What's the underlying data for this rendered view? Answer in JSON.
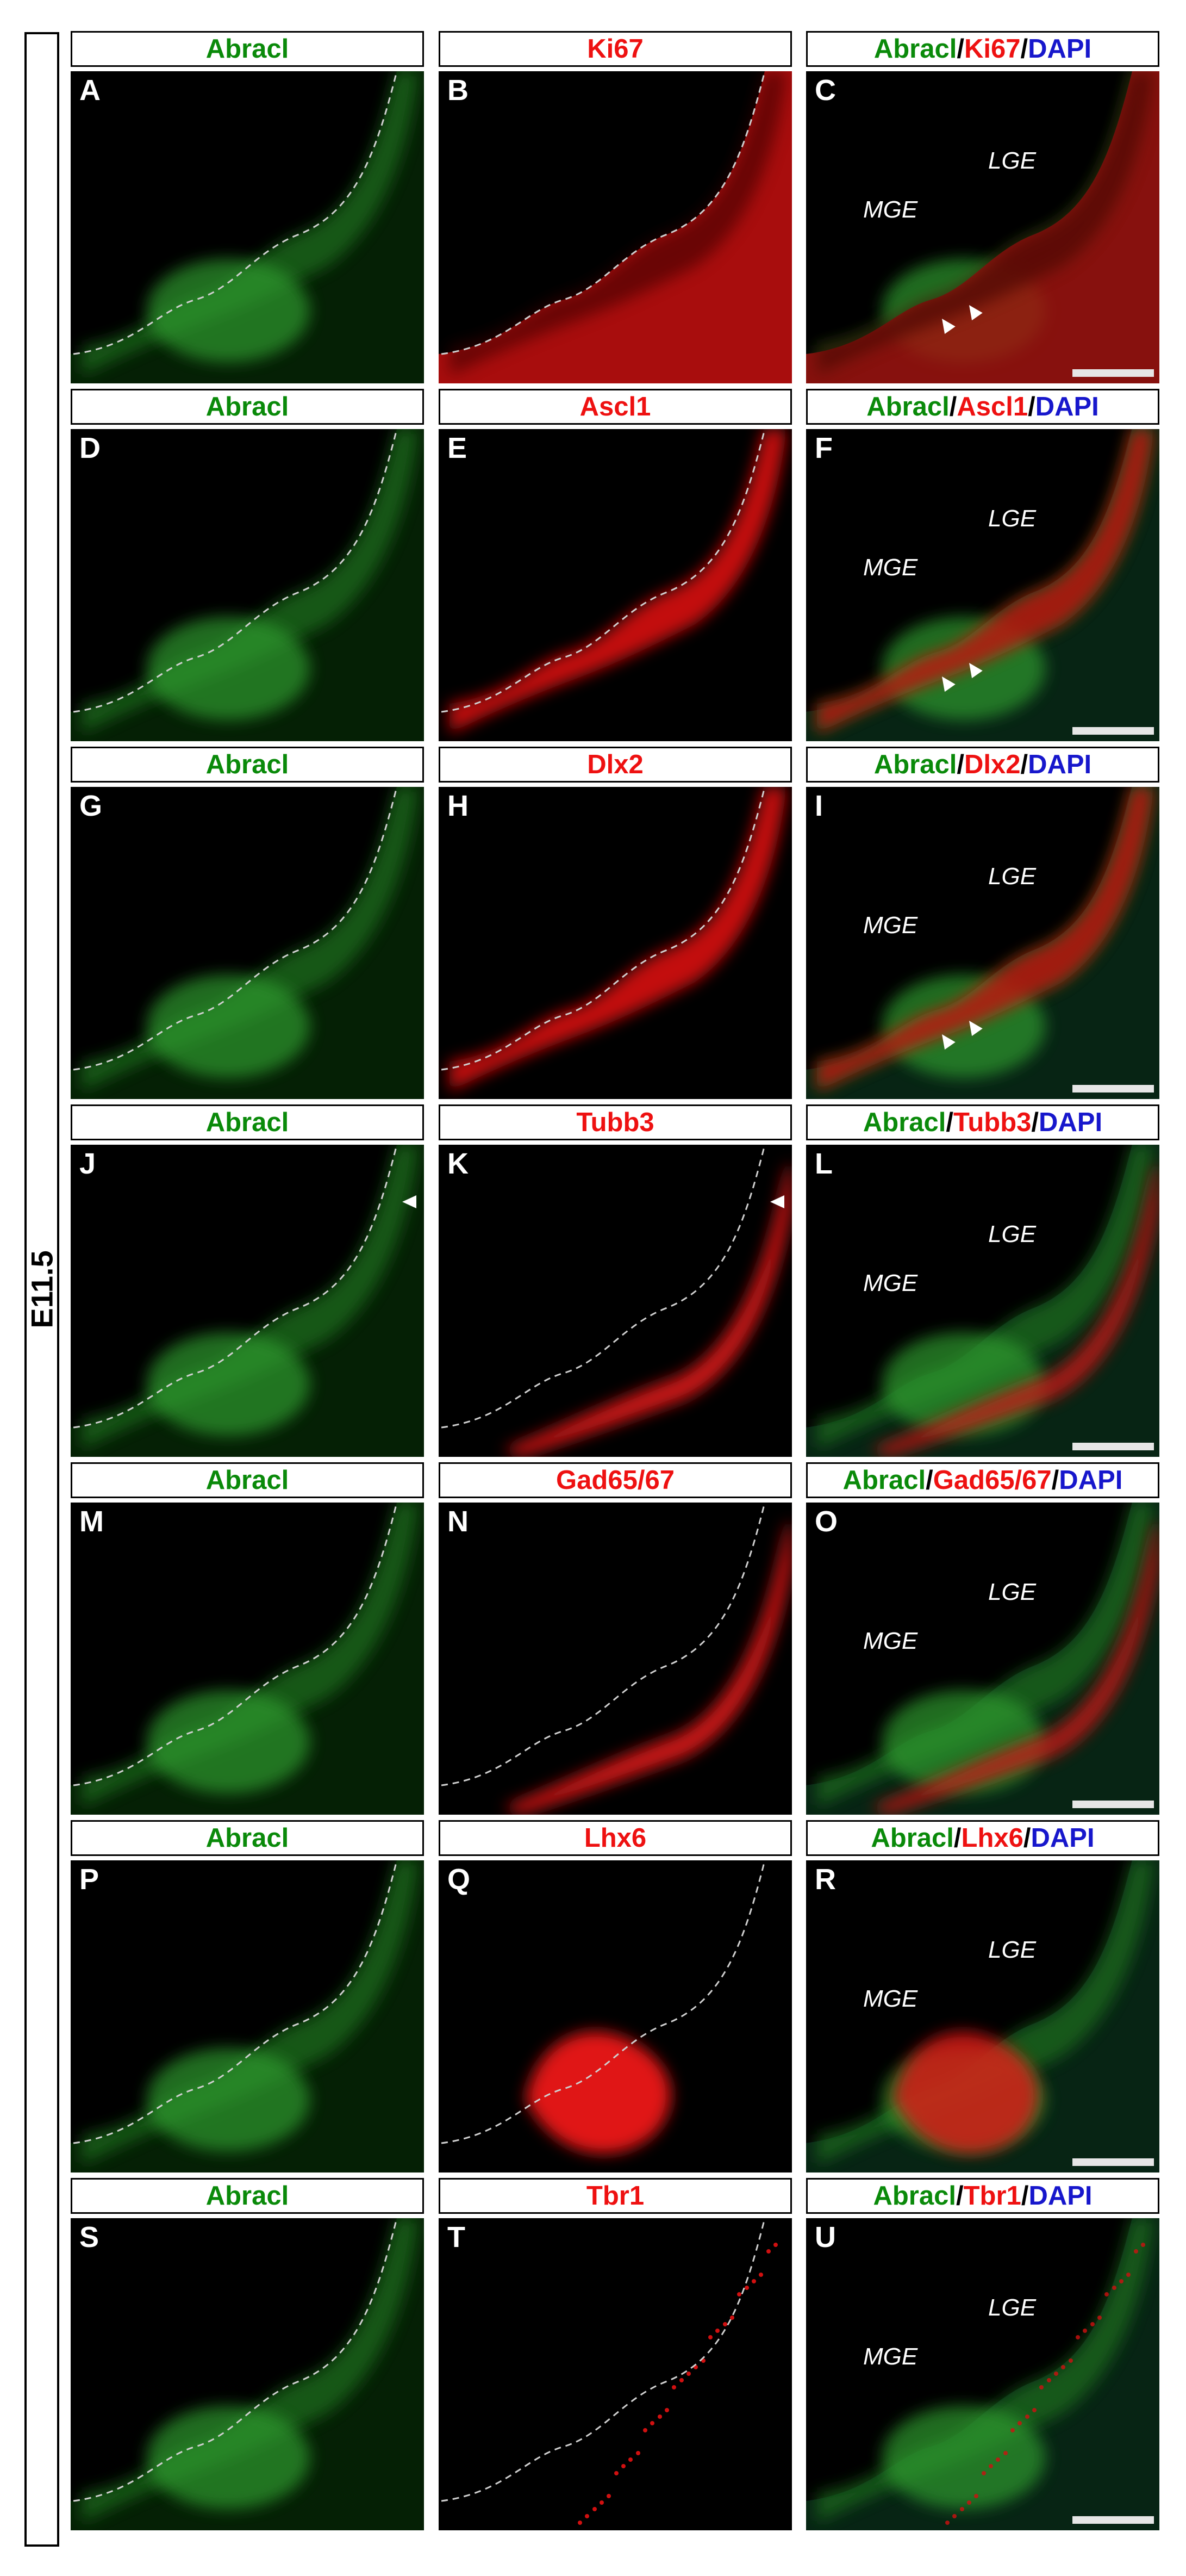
{
  "stage_label": "E11.5",
  "colors": {
    "green": "#0a8a0a",
    "red": "#ee1111",
    "blue": "#1717cc",
    "panel_bg": "#000000"
  },
  "rows": [
    {
      "titles": [
        [
          {
            "t": "Abracl",
            "c": "g"
          }
        ],
        [
          {
            "t": "Ki67",
            "c": "r"
          }
        ],
        [
          {
            "t": "Abracl",
            "c": "g"
          },
          {
            "t": "/",
            "c": "k"
          },
          {
            "t": "Ki67",
            "c": "r"
          },
          {
            "t": "/",
            "c": "k"
          },
          {
            "t": "DAPI",
            "c": "b"
          }
        ]
      ],
      "letters": [
        "A",
        "B",
        "C"
      ],
      "red": "ki67",
      "arrows": "vz"
    },
    {
      "titles": [
        [
          {
            "t": "Abracl",
            "c": "g"
          }
        ],
        [
          {
            "t": "Ascl1",
            "c": "r"
          }
        ],
        [
          {
            "t": "Abracl",
            "c": "g"
          },
          {
            "t": "/",
            "c": "k"
          },
          {
            "t": "Ascl1",
            "c": "r"
          },
          {
            "t": "/",
            "c": "k"
          },
          {
            "t": "DAPI",
            "c": "b"
          }
        ]
      ],
      "letters": [
        "D",
        "E",
        "F"
      ],
      "red": "band",
      "arrows": "vz"
    },
    {
      "titles": [
        [
          {
            "t": "Abracl",
            "c": "g"
          }
        ],
        [
          {
            "t": "Dlx2",
            "c": "r"
          }
        ],
        [
          {
            "t": "Abracl",
            "c": "g"
          },
          {
            "t": "/",
            "c": "k"
          },
          {
            "t": "Dlx2",
            "c": "r"
          },
          {
            "t": "/",
            "c": "k"
          },
          {
            "t": "DAPI",
            "c": "b"
          }
        ]
      ],
      "letters": [
        "G",
        "H",
        "I"
      ],
      "red": "band",
      "arrows": "vz"
    },
    {
      "titles": [
        [
          {
            "t": "Abracl",
            "c": "g"
          }
        ],
        [
          {
            "t": "Tubb3",
            "c": "r"
          }
        ],
        [
          {
            "t": "Abracl",
            "c": "g"
          },
          {
            "t": "/",
            "c": "k"
          },
          {
            "t": "Tubb3",
            "c": "r"
          },
          {
            "t": "/",
            "c": "k"
          },
          {
            "t": "DAPI",
            "c": "b"
          }
        ]
      ],
      "letters": [
        "J",
        "K",
        "L"
      ],
      "red": "mantle",
      "arrows": "top"
    },
    {
      "titles": [
        [
          {
            "t": "Abracl",
            "c": "g"
          }
        ],
        [
          {
            "t": "Gad65/67",
            "c": "r"
          }
        ],
        [
          {
            "t": "Abracl",
            "c": "g"
          },
          {
            "t": "/",
            "c": "k"
          },
          {
            "t": "Gad65/67",
            "c": "r"
          },
          {
            "t": "/",
            "c": "k"
          },
          {
            "t": "DAPI",
            "c": "b"
          }
        ]
      ],
      "letters": [
        "M",
        "N",
        "O"
      ],
      "red": "mantle",
      "arrows": "none"
    },
    {
      "titles": [
        [
          {
            "t": "Abracl",
            "c": "g"
          }
        ],
        [
          {
            "t": "Lhx6",
            "c": "r"
          }
        ],
        [
          {
            "t": "Abracl",
            "c": "g"
          },
          {
            "t": "/",
            "c": "k"
          },
          {
            "t": "Lhx6",
            "c": "r"
          },
          {
            "t": "/",
            "c": "k"
          },
          {
            "t": "DAPI",
            "c": "b"
          }
        ]
      ],
      "letters": [
        "P",
        "Q",
        "R"
      ],
      "red": "blob",
      "arrows": "none"
    },
    {
      "titles": [
        [
          {
            "t": "Abracl",
            "c": "g"
          }
        ],
        [
          {
            "t": "Tbr1",
            "c": "r"
          }
        ],
        [
          {
            "t": "Abracl",
            "c": "g"
          },
          {
            "t": "/",
            "c": "k"
          },
          {
            "t": "Tbr1",
            "c": "r"
          },
          {
            "t": "/",
            "c": "k"
          },
          {
            "t": "DAPI",
            "c": "b"
          }
        ]
      ],
      "letters": [
        "S",
        "T",
        "U"
      ],
      "red": "sparse",
      "arrows": "none"
    }
  ],
  "merge_labels": {
    "mge": "MGE",
    "lge": "LGE"
  }
}
